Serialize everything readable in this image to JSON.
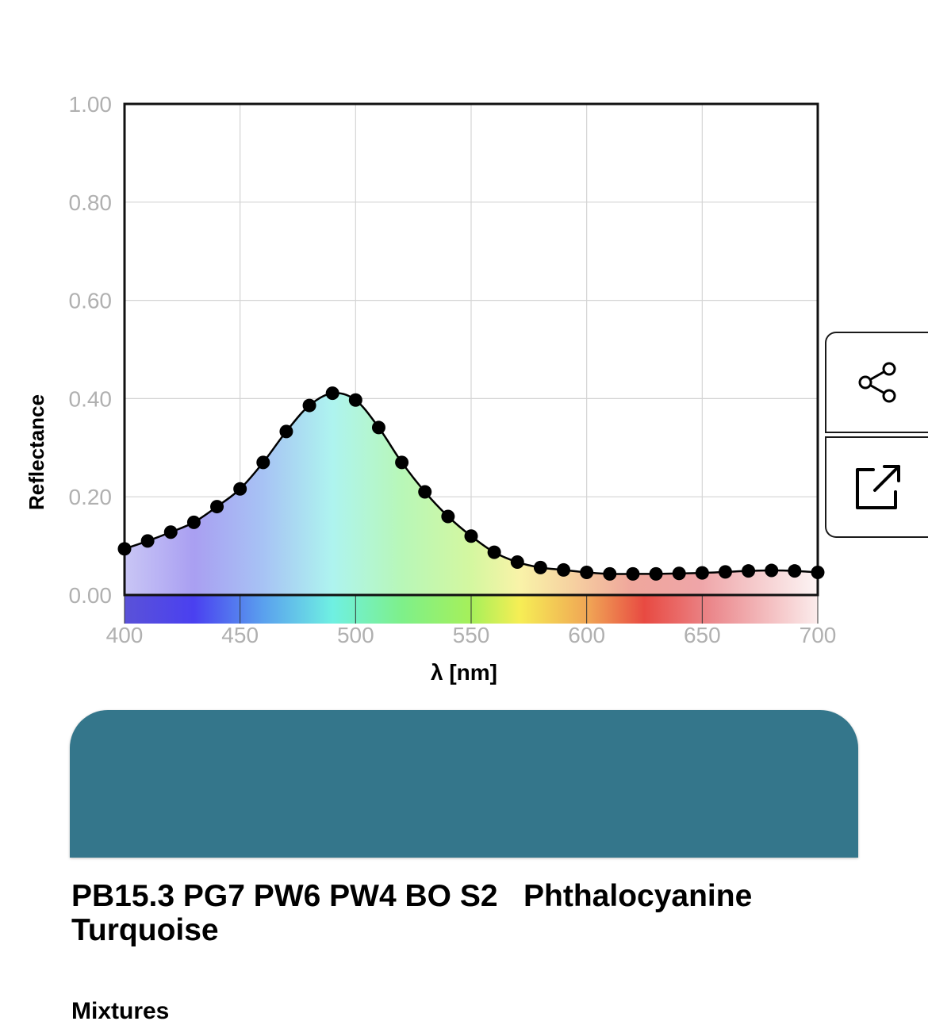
{
  "colors": {
    "swatch": "#34768B",
    "curve": "#000000",
    "grid": "#d4d4d4",
    "tick_label": "#b0b0b0"
  },
  "chart_data": {
    "type": "line",
    "xlabel": "λ [nm]",
    "ylabel": "Reflectance",
    "xlim": [
      400,
      700
    ],
    "ylim": [
      0,
      1
    ],
    "xticks": [
      "400",
      "450",
      "500",
      "550",
      "600",
      "650",
      "700"
    ],
    "yticks": [
      "0.00",
      "0.20",
      "0.40",
      "0.60",
      "0.80",
      "1.00"
    ],
    "grid": true,
    "x": [
      400,
      410,
      420,
      430,
      440,
      450,
      460,
      470,
      480,
      490,
      500,
      510,
      520,
      530,
      540,
      550,
      560,
      570,
      580,
      590,
      600,
      610,
      620,
      630,
      640,
      650,
      660,
      670,
      680,
      690,
      700
    ],
    "series": [
      {
        "values": [
          0.094,
          0.11,
          0.128,
          0.148,
          0.18,
          0.216,
          0.27,
          0.333,
          0.386,
          0.411,
          0.397,
          0.341,
          0.27,
          0.21,
          0.16,
          0.12,
          0.087,
          0.067,
          0.056,
          0.051,
          0.046,
          0.043,
          0.043,
          0.043,
          0.044,
          0.045,
          0.047,
          0.049,
          0.05,
          0.049,
          0.046
        ]
      }
    ]
  },
  "actions": {
    "share_icon": "share-icon",
    "open_external_icon": "open-external-icon"
  },
  "paint": {
    "name": "PB15.3 PG7 PW6 PW4 BO S2   Phthalocyanine Turquoise",
    "next_heading": "Mixtures"
  }
}
